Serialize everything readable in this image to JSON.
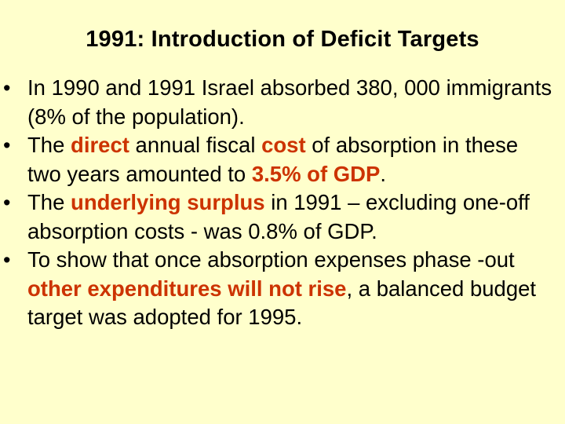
{
  "slide": {
    "title": "1991: Introduction of Deficit Targets",
    "bullet_glyph": "•",
    "bullets": [
      {
        "parts": [
          {
            "text": "In 1990 and 1991 Israel absorbed 380, 000 immigrants (8% of the population).",
            "emphasis": false
          }
        ]
      },
      {
        "parts": [
          {
            "text": "The ",
            "emphasis": false
          },
          {
            "text": "direct",
            "emphasis": true
          },
          {
            "text": " annual fiscal ",
            "emphasis": false
          },
          {
            "text": "cost",
            "emphasis": true
          },
          {
            "text": " of absorption in these two years amounted to ",
            "emphasis": false
          },
          {
            "text": "3.5% of GDP",
            "emphasis": true
          },
          {
            "text": ".",
            "emphasis": false
          }
        ]
      },
      {
        "parts": [
          {
            "text": "The ",
            "emphasis": false
          },
          {
            "text": "underlying surplus",
            "emphasis": true
          },
          {
            "text": " in 1991 – excluding one-off absorption costs - was 0.8% of GDP.",
            "emphasis": false
          }
        ]
      },
      {
        "parts": [
          {
            "text": "To show that once absorption expenses phase -out ",
            "emphasis": false
          },
          {
            "text": "other expenditures will not rise",
            "emphasis": true
          },
          {
            "text": ", a balanced budget target was adopted for 1995.",
            "emphasis": false
          }
        ]
      }
    ],
    "colors": {
      "background": "#ffffcc",
      "text": "#000000",
      "emphasis": "#cc3300"
    }
  }
}
